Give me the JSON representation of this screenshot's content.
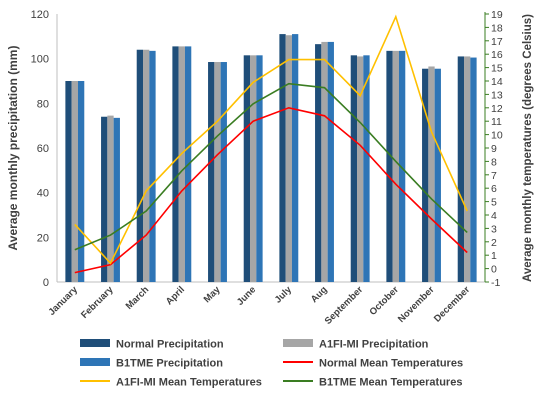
{
  "chart_data": {
    "type": "bar",
    "categories": [
      "January",
      "February",
      "March",
      "April",
      "May",
      "June",
      "July",
      "Aug",
      "September",
      "October",
      "November",
      "December"
    ],
    "ylabel": "Average monthly precipitation (mm)",
    "y2label": "Average monthly temperatures (degrees Celsius)",
    "ylim": [
      0,
      120
    ],
    "y2lim": [
      -1,
      19
    ],
    "yticks": [
      "0",
      "20",
      "40",
      "60",
      "80",
      "100",
      "120"
    ],
    "y2ticks": [
      "-1",
      "0",
      "1",
      "2",
      "3",
      "4",
      "5",
      "6",
      "7",
      "8",
      "9",
      "10",
      "11",
      "12",
      "13",
      "14",
      "15",
      "16",
      "17",
      "18",
      "19"
    ],
    "grid": false,
    "legend_position": "bottom",
    "bar_series": [
      {
        "name": "Normal Precipitation",
        "color": "#1f4e79",
        "values": [
          90,
          74,
          104,
          105.5,
          98.5,
          101.5,
          111,
          106.5,
          101.5,
          103.5,
          95.5,
          101
        ]
      },
      {
        "name": "A1FI-MI Precipitation",
        "color": "#a6a6a6",
        "values": [
          90,
          74.5,
          104,
          105.5,
          98.5,
          101.5,
          110.5,
          107.5,
          101,
          103.5,
          96.5,
          101
        ]
      },
      {
        "name": "B1TME Precipitation",
        "color": "#2e75b6",
        "values": [
          90,
          73.5,
          103.5,
          105.5,
          98.5,
          101.5,
          111,
          107.5,
          101.5,
          103.5,
          95.5,
          100.5
        ]
      }
    ],
    "line_series": [
      {
        "name": "Normal Mean Temperatures",
        "color": "#ff0000",
        "values": [
          -0.3,
          0.3,
          2.5,
          5.8,
          8.5,
          11.0,
          12.0,
          11.4,
          9.2,
          6.3,
          3.7,
          1.2
        ]
      },
      {
        "name": "A1FI-MI Mean Temperatures",
        "color": "#ffc000",
        "values": [
          3.3,
          0.4,
          5.8,
          8.6,
          11.0,
          13.9,
          15.6,
          15.6,
          12.9,
          18.8,
          10.2,
          4.3
        ]
      },
      {
        "name": "B1TME Mean Temperatures",
        "color": "#3a7d22",
        "values": [
          1.4,
          2.5,
          4.3,
          7.3,
          9.9,
          12.3,
          13.8,
          13.5,
          10.9,
          8.0,
          5.2,
          2.7
        ]
      }
    ],
    "legend_rows": [
      [
        "Normal Precipitation",
        "A1FI-MI Precipitation"
      ],
      [
        "B1TME Precipitation",
        "Normal Mean Temperatures"
      ],
      [
        "A1FI-MI Mean Temperatures",
        "B1TME Mean Temperatures"
      ]
    ]
  }
}
